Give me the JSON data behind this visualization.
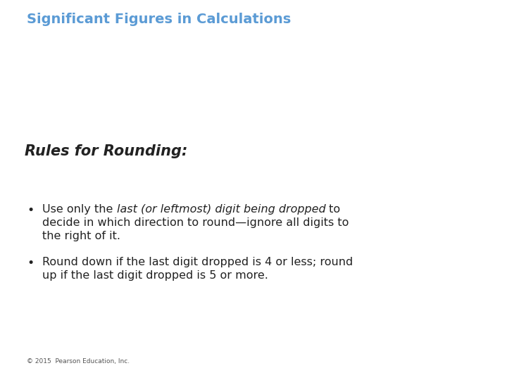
{
  "title": "Significant Figures in Calculations",
  "title_color": "#5b9bd5",
  "title_fontsize": 14,
  "subtitle": "Rules for Rounding:",
  "subtitle_fontsize": 15,
  "subtitle_color": "#222222",
  "bullet_fontsize": 11.5,
  "bullet_color": "#222222",
  "bullet1_pre": "Use only the ",
  "bullet1_italic": "last (or leftmost) digit being dropped",
  "bullet1_post": " to",
  "bullet1_line2": "decide in which direction to round—ignore all digits to",
  "bullet1_line3": "the right of it.",
  "bullet2_line1": "Round down if the last digit dropped is 4 or less; round",
  "bullet2_line2": "up if the last digit dropped is 5 or more.",
  "footer": "© 2015  Pearson Education, Inc.",
  "footer_fontsize": 6.5,
  "background_color": "#ffffff"
}
